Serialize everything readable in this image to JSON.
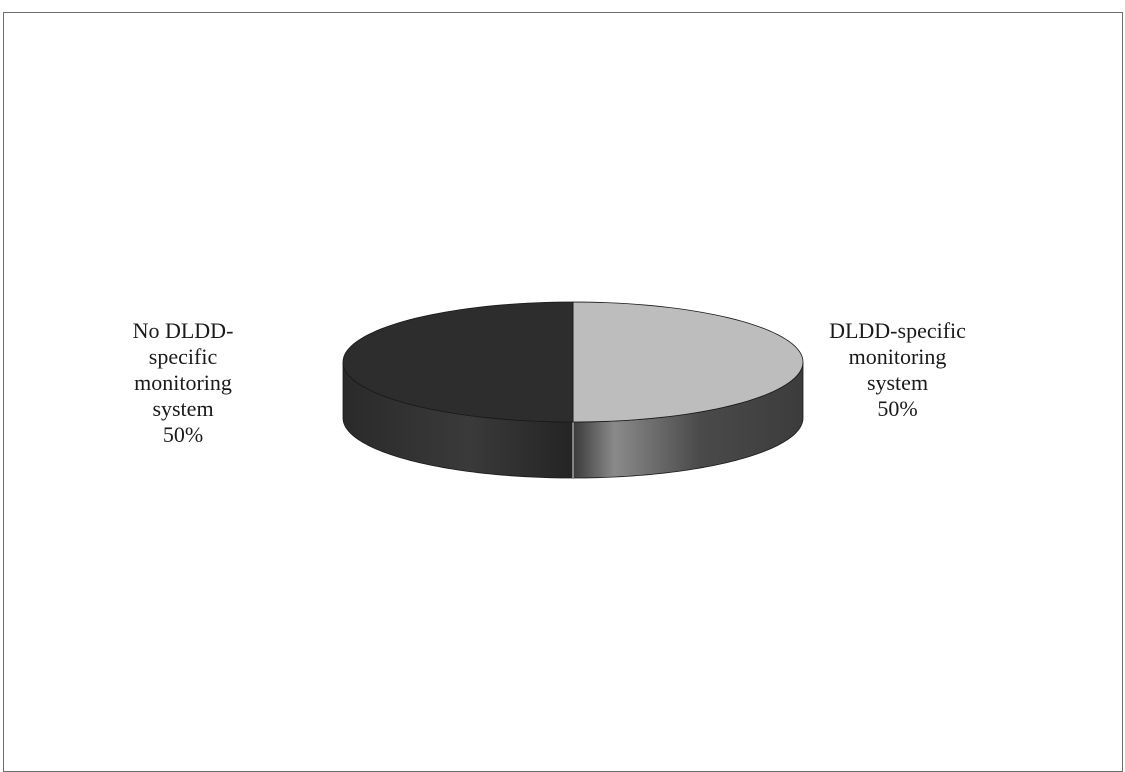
{
  "chart_data": {
    "type": "pie",
    "style": "3d",
    "title": "",
    "legend": "none",
    "slices": [
      {
        "label": "DLDD-specific monitoring system",
        "value": 50,
        "display": "50%",
        "color": "#bdbdbd",
        "side_color": "#5e5e5e"
      },
      {
        "label": "No DLDD-specific monitoring system",
        "value": 50,
        "display": "50%",
        "color": "#2d2d2d",
        "side_color": "#2f2f2f"
      }
    ]
  },
  "labels": {
    "right": {
      "name_lines": [
        "DLDD-specific",
        "monitoring",
        "system"
      ],
      "pct": "50%"
    },
    "left": {
      "name_lines": [
        "No DLDD-",
        "specific",
        "monitoring",
        "system"
      ],
      "pct": "50%"
    }
  }
}
